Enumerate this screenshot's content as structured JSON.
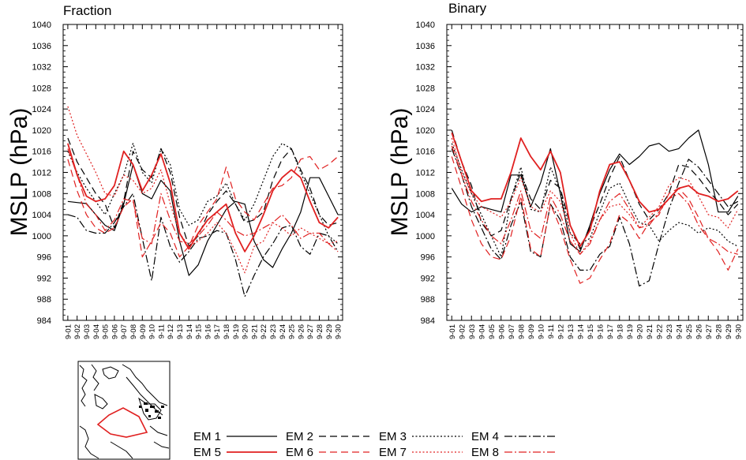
{
  "chart_data": [
    {
      "type": "line",
      "title": "Fraction",
      "ylabel": "MSLP (hPa)",
      "ylim": [
        984,
        1040
      ],
      "yticks": [
        "984",
        "988",
        "992",
        "996",
        "1000",
        "1004",
        "1008",
        "1012",
        "1016",
        "1020",
        "1024",
        "1028",
        "1032",
        "1036",
        "1040"
      ],
      "categories": [
        "9-01",
        "9-02",
        "9-03",
        "9-04",
        "9-05",
        "9-06",
        "9-07",
        "9-08",
        "9-09",
        "9-10",
        "9-11",
        "9-12",
        "9-13",
        "9-14",
        "9-15",
        "9-16",
        "9-17",
        "9-18",
        "9-19",
        "9-20",
        "9-21",
        "9-22",
        "9-23",
        "9-24",
        "9-25",
        "9-26",
        "9-27",
        "9-28",
        "9-29",
        "9-30"
      ],
      "series": [
        {
          "name": "EM 1",
          "color": "#000000",
          "dash": "",
          "values": [
            1006.5,
            1006.3,
            1006.1,
            1004.0,
            1002.0,
            1001.0,
            1006.0,
            1013.5,
            1008.0,
            1007.0,
            1010.5,
            1008.5,
            999.0,
            992.5,
            994.5,
            999.0,
            1002.0,
            1005.0,
            1006.5,
            1006.0,
            999.0,
            995.5,
            994.0,
            997.5,
            1000.5,
            1004.5,
            1011.0,
            1011.0,
            1007.5,
            1004.0
          ]
        },
        {
          "name": "EM 2",
          "color": "#000000",
          "dash": "9,5",
          "values": [
            1018.5,
            1014.0,
            1011.0,
            1008.0,
            1006.0,
            1001.5,
            1006.5,
            1016.0,
            1012.5,
            1011.0,
            1016.5,
            1012.0,
            1003.5,
            998.0,
            1000.0,
            1004.0,
            1006.5,
            1008.5,
            1006.0,
            1002.5,
            1003.0,
            1004.5,
            1010.5,
            1014.5,
            1016.5,
            1012.5,
            1009.0,
            1004.0,
            1002.0,
            1002.5
          ]
        },
        {
          "name": "EM 3",
          "color": "#000000",
          "dash": "2,2.5",
          "values": [
            1016.0,
            1012.0,
            1009.0,
            1006.5,
            1004.0,
            1008.0,
            1011.5,
            1017.5,
            1012.0,
            1010.0,
            1016.5,
            1013.5,
            1005.0,
            1002.0,
            1003.0,
            1006.5,
            1007.5,
            1010.0,
            1006.0,
            1003.0,
            1006.0,
            1010.5,
            1015.0,
            1017.5,
            1016.5,
            1012.0,
            1008.0,
            1004.0,
            1000.0,
            998.5
          ]
        },
        {
          "name": "EM 4",
          "color": "#000000",
          "dash": "10,3,2,3",
          "values": [
            1004.0,
            1003.5,
            1001.0,
            1000.5,
            1000.5,
            1002.5,
            1005.5,
            1008.0,
            999.5,
            991.5,
            1003.5,
            998.0,
            995.0,
            997.0,
            999.5,
            1000.0,
            1001.0,
            1000.5,
            995.5,
            988.5,
            992.5,
            996.0,
            998.5,
            1001.5,
            1002.0,
            998.0,
            996.5,
            1000.5,
            1000.0,
            997.0
          ]
        },
        {
          "name": "EM 5",
          "color": "#e02020",
          "dash": "",
          "values": [
            1017.5,
            1011.5,
            1007.5,
            1006.5,
            1007.0,
            1009.5,
            1016.0,
            1013.5,
            1008.5,
            1011.5,
            1015.5,
            1010.0,
            1000.5,
            997.5,
            1000.5,
            1003.0,
            1004.5,
            1006.0,
            1000.5,
            997.0,
            1000.0,
            1004.0,
            1008.5,
            1011.0,
            1012.5,
            1011.0,
            1006.5,
            1002.5,
            1001.5,
            1003.5
          ]
        },
        {
          "name": "EM 6",
          "color": "#e02020",
          "dash": "9,5",
          "values": [
            1014.5,
            1008.5,
            1004.0,
            1001.5,
            1000.5,
            1001.5,
            1005.5,
            1007.0,
            996.0,
            999.0,
            1002.5,
            1000.5,
            996.0,
            998.0,
            1002.0,
            1004.5,
            1007.0,
            1013.0,
            1007.0,
            1004.5,
            1003.0,
            1006.0,
            1009.0,
            1009.5,
            1011.0,
            1014.5,
            1015.0,
            1012.5,
            1013.5,
            1015.0
          ]
        },
        {
          "name": "EM 7",
          "color": "#e02020",
          "dash": "2,2.5",
          "values": [
            1024.5,
            1019.0,
            1015.5,
            1012.0,
            1008.0,
            1007.5,
            1011.5,
            1010.5,
            1008.0,
            1009.0,
            1012.5,
            1006.0,
            1000.5,
            998.0,
            999.0,
            1000.5,
            1002.5,
            1000.5,
            997.0,
            993.0,
            998.0,
            999.0,
            1002.5,
            1001.5,
            1000.0,
            1001.5,
            1000.5,
            999.5,
            998.5,
            999.0
          ]
        },
        {
          "name": "EM 8",
          "color": "#e02020",
          "dash": "10,3,2,3",
          "values": [
            1016.5,
            1011.5,
            1006.0,
            1004.0,
            1001.0,
            1003.0,
            1007.0,
            1006.5,
            999.5,
            998.5,
            1008.0,
            1003.0,
            999.0,
            998.5,
            1000.0,
            1002.0,
            1004.5,
            1003.0,
            1001.0,
            1000.0,
            1000.5,
            1001.5,
            1002.5,
            1004.0,
            1002.0,
            999.5,
            1000.5,
            1000.5,
            998.5,
            997.0
          ]
        }
      ]
    },
    {
      "type": "line",
      "title": "Binary",
      "ylabel": "MSLP (hPa)",
      "ylim": [
        984,
        1040
      ],
      "yticks": [
        "984",
        "988",
        "992",
        "996",
        "1000",
        "1004",
        "1008",
        "1012",
        "1016",
        "1020",
        "1024",
        "1028",
        "1032",
        "1036",
        "1040"
      ],
      "categories": [
        "9-01",
        "9-02",
        "9-03",
        "9-04",
        "9-05",
        "9-06",
        "9-07",
        "9-08",
        "9-09",
        "9-10",
        "9-11",
        "9-12",
        "9-13",
        "9-14",
        "9-15",
        "9-16",
        "9-17",
        "9-18",
        "9-19",
        "9-20",
        "9-21",
        "9-22",
        "9-23",
        "9-24",
        "9-25",
        "9-26",
        "9-27",
        "9-28",
        "9-29",
        "9-30"
      ],
      "series": [
        {
          "name": "EM 1",
          "color": "#000000",
          "dash": "",
          "values": [
            1009.0,
            1006.0,
            1004.5,
            1005.5,
            1005.0,
            1004.5,
            1011.5,
            1011.5,
            1005.5,
            1010.0,
            1016.5,
            1008.0,
            998.5,
            997.0,
            1002.0,
            1008.0,
            1012.5,
            1015.5,
            1013.5,
            1015.0,
            1017.0,
            1017.5,
            1016.0,
            1016.5,
            1018.5,
            1020.0,
            1013.5,
            1004.5,
            1004.5,
            1007.5
          ]
        },
        {
          "name": "EM 2",
          "color": "#000000",
          "dash": "9,5",
          "values": [
            1020.0,
            1014.0,
            1009.5,
            1002.5,
            1000.0,
            1001.0,
            1007.0,
            1012.0,
            1007.0,
            1005.0,
            1010.5,
            1009.0,
            1002.0,
            997.5,
            1001.5,
            1006.0,
            1011.0,
            1015.0,
            1010.5,
            1006.0,
            1003.0,
            1005.0,
            1008.0,
            1013.5,
            1013.0,
            1011.0,
            1008.5,
            1006.5,
            1004.0,
            1006.0
          ]
        },
        {
          "name": "EM 3",
          "color": "#000000",
          "dash": "2,2.5",
          "values": [
            1017.5,
            1012.5,
            1008.0,
            1004.0,
            1000.0,
            996.0,
            1007.0,
            1013.0,
            1005.0,
            1004.5,
            1013.0,
            1008.5,
            1000.5,
            998.5,
            999.5,
            1004.5,
            1009.0,
            1010.0,
            1006.0,
            1002.5,
            1002.0,
            999.0,
            1001.0,
            1002.5,
            1002.0,
            1000.5,
            1001.5,
            1001.0,
            999.0,
            998.0
          ]
        },
        {
          "name": "EM 4",
          "color": "#000000",
          "dash": "10,3,2,3",
          "values": [
            1016.5,
            1011.5,
            1005.5,
            1001.5,
            997.5,
            995.5,
            1002.0,
            1006.5,
            997.0,
            996.0,
            1006.0,
            1003.0,
            996.0,
            993.5,
            993.5,
            996.5,
            998.0,
            1003.5,
            998.5,
            990.5,
            991.5,
            998.5,
            1005.0,
            1010.0,
            1014.5,
            1013.0,
            1010.5,
            1008.0,
            1005.5,
            1006.5
          ]
        },
        {
          "name": "EM 5",
          "color": "#e02020",
          "dash": "",
          "values": [
            1019.5,
            1014.0,
            1008.5,
            1006.5,
            1007.0,
            1007.0,
            1012.0,
            1018.5,
            1015.0,
            1012.5,
            1016.0,
            1012.0,
            1002.0,
            998.0,
            1001.0,
            1008.5,
            1013.5,
            1014.0,
            1010.5,
            1006.5,
            1004.5,
            1005.0,
            1007.0,
            1009.0,
            1009.5,
            1008.0,
            1007.5,
            1006.5,
            1007.0,
            1008.5
          ]
        },
        {
          "name": "EM 6",
          "color": "#e02020",
          "dash": "9,5",
          "values": [
            1015.0,
            1009.0,
            1003.0,
            998.5,
            996.0,
            995.5,
            1000.0,
            1007.5,
            997.5,
            996.0,
            1006.0,
            1001.5,
            995.5,
            991.0,
            992.0,
            995.5,
            998.5,
            1004.0,
            1002.5,
            999.5,
            1002.5,
            1004.0,
            1008.0,
            1009.0,
            1007.0,
            1003.5,
            999.5,
            997.0,
            993.5,
            997.5
          ]
        },
        {
          "name": "EM 7",
          "color": "#e02020",
          "dash": "2,2.5",
          "values": [
            1018.5,
            1012.0,
            1008.0,
            1005.5,
            1004.5,
            1003.5,
            1006.5,
            1011.0,
            1005.5,
            1004.5,
            1008.5,
            1006.5,
            1000.5,
            996.5,
            999.0,
            1003.0,
            1005.5,
            1006.0,
            1004.0,
            1001.5,
            1003.5,
            1005.5,
            1009.5,
            1011.0,
            1010.5,
            1007.5,
            1004.0,
            1003.5,
            1001.5,
            1005.0
          ]
        },
        {
          "name": "EM 8",
          "color": "#e02020",
          "dash": "10,3,2,3",
          "values": [
            1017.0,
            1011.5,
            1006.5,
            1003.0,
            1000.0,
            998.5,
            1003.0,
            1008.5,
            1001.0,
            999.5,
            1007.5,
            1004.0,
            999.0,
            996.5,
            998.5,
            1003.0,
            1006.5,
            1008.0,
            1005.0,
            1001.5,
            1002.0,
            1004.5,
            1007.0,
            1008.0,
            1006.0,
            1002.0,
            999.5,
            998.5,
            997.0,
            996.5
          ]
        }
      ]
    }
  ],
  "legend": {
    "entries": [
      {
        "label": "EM 1",
        "color": "#000000",
        "dash": ""
      },
      {
        "label": "EM 2",
        "color": "#000000",
        "dash": "9,5"
      },
      {
        "label": "EM 3",
        "color": "#000000",
        "dash": "2,2.5"
      },
      {
        "label": "EM 4",
        "color": "#000000",
        "dash": "10,3,2,3"
      },
      {
        "label": "EM 5",
        "color": "#e02020",
        "dash": ""
      },
      {
        "label": "EM 6",
        "color": "#e02020",
        "dash": "9,5"
      },
      {
        "label": "EM 7",
        "color": "#e02020",
        "dash": "2,2.5"
      },
      {
        "label": "EM 8",
        "color": "#e02020",
        "dash": "10,3,2,3"
      }
    ]
  },
  "inset_map": {
    "region_outline_color": "#e02020"
  }
}
